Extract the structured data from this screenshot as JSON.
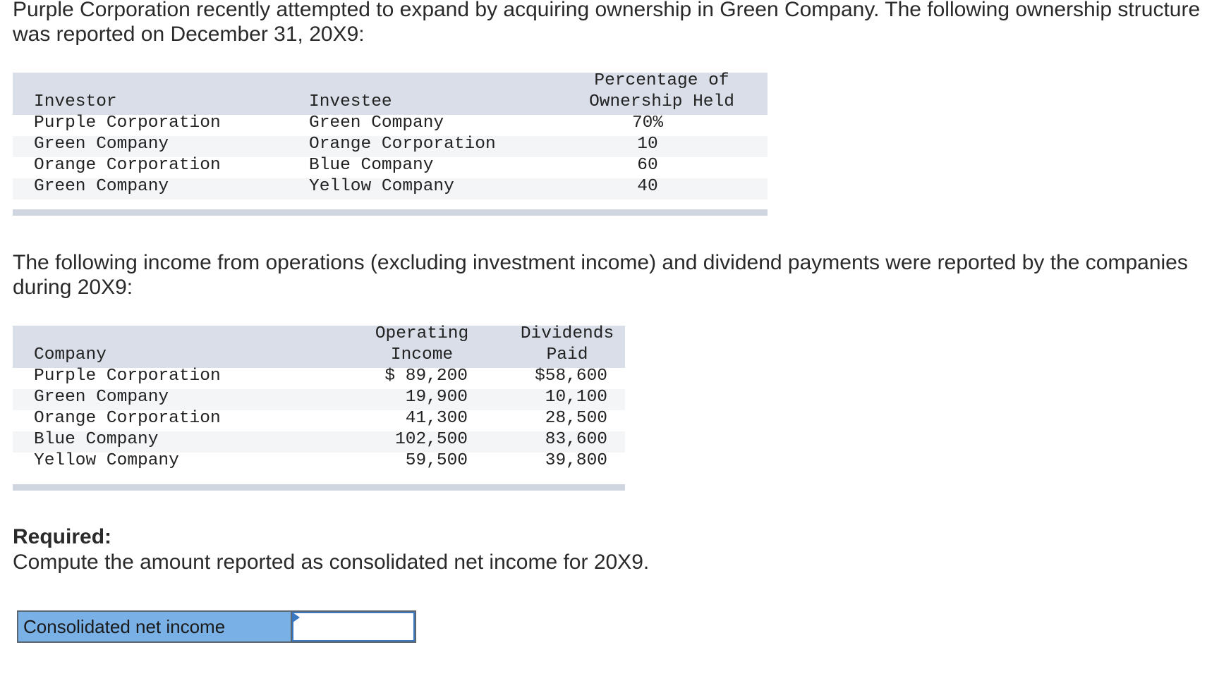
{
  "intro": {
    "text": "Purple Corporation recently attempted to expand by acquiring ownership in Green Company. The following ownership structure was reported on December 31, 20X9:"
  },
  "ownership_table": {
    "headers": {
      "investor": "Investor",
      "investee": "Investee",
      "percentage_line1": "Percentage of",
      "percentage_line2": "Ownership Held"
    },
    "rows": [
      {
        "investor": "Purple Corporation",
        "investee": "Green Company",
        "percentage": "70%"
      },
      {
        "investor": "Green Company",
        "investee": "Orange Corporation",
        "percentage": "10"
      },
      {
        "investor": "Orange Corporation",
        "investee": "Blue Company",
        "percentage": "60"
      },
      {
        "investor": "Green Company",
        "investee": "Yellow Company",
        "percentage": "40"
      }
    ]
  },
  "income_intro": {
    "text": "The following income from operations (excluding investment income) and dividend payments were reported by the companies during 20X9:"
  },
  "income_table": {
    "headers": {
      "company": "Company",
      "operating_line1": "Operating",
      "operating_line2": "Income",
      "dividends_line1": "Dividends",
      "dividends_line2": "Paid"
    },
    "rows": [
      {
        "company": "Purple Corporation",
        "operating": "$ 89,200",
        "dividends": "$58,600"
      },
      {
        "company": "Green Company",
        "operating": "19,900",
        "dividends": "10,100"
      },
      {
        "company": "Orange Corporation",
        "operating": "41,300",
        "dividends": "28,500"
      },
      {
        "company": "Blue Company",
        "operating": "102,500",
        "dividends": "83,600"
      },
      {
        "company": "Yellow Company",
        "operating": "59,500",
        "dividends": "39,800"
      }
    ]
  },
  "required": {
    "label": "Required:",
    "text": "Compute the amount reported as consolidated net income for 20X9."
  },
  "answer": {
    "label": "Consolidated net income",
    "value": ""
  },
  "colors": {
    "table_header_bg": "#d9dee8",
    "answer_label_bg": "#79b0e6",
    "input_border": "#3a78c2"
  }
}
